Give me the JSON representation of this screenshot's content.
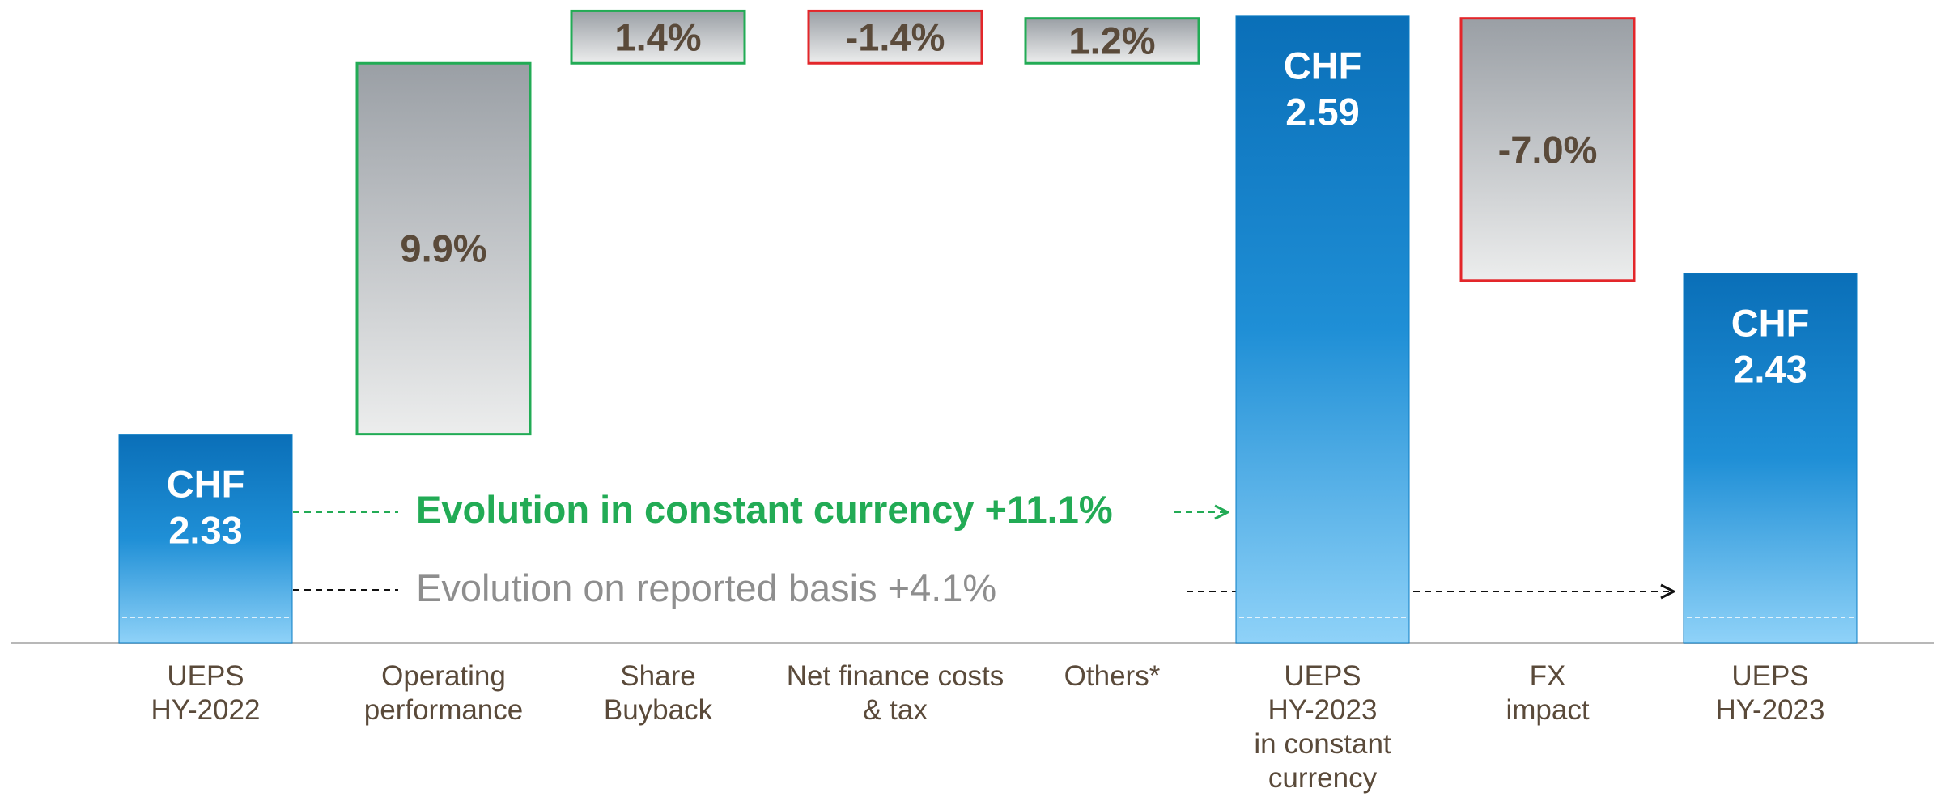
{
  "chart_data": {
    "type": "waterfall",
    "categories": [
      "UEPS\nHY-2022",
      "Operating\nperformance",
      "Share\nBuyback",
      "Net finance costs\n& tax",
      "Others*",
      "UEPS\nHY-2023\nin constant\ncurrency",
      "FX\nimpact",
      "UEPS\nHY-2023"
    ],
    "measure": [
      "total",
      "relative",
      "relative",
      "relative",
      "relative",
      "total",
      "relative",
      "total"
    ],
    "values": [
      2.33,
      9.9,
      1.4,
      -1.4,
      1.2,
      2.59,
      -7.0,
      2.43
    ],
    "value_labels": [
      "CHF\n2.33",
      "9.9%",
      "1.4%",
      "-1.4%",
      "1.2%",
      "CHF\n2.59",
      "-7.0%",
      "CHF\n2.43"
    ],
    "ylim": [
      2.2,
      2.6
    ],
    "y2lim": [
      -5.58,
      11.59
    ],
    "total_color": "#0a7cc4",
    "increase_color": "#22ab55",
    "decrease_color": "#e3262a",
    "annotations": [
      "Evolution in constant currency +11.1%",
      "Evolution on reported basis +4.1%"
    ]
  }
}
